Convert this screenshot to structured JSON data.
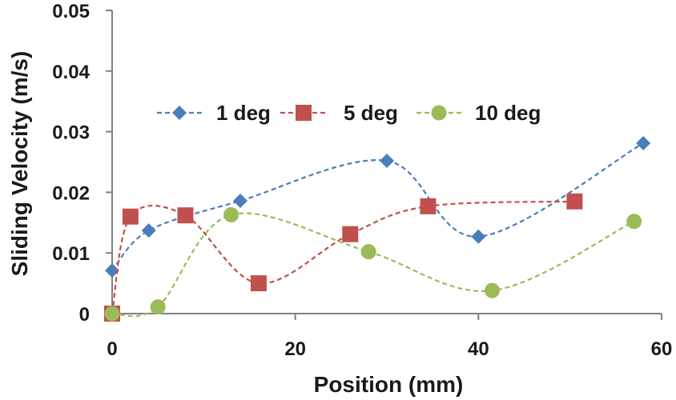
{
  "chart_data": {
    "type": "scatter",
    "title": "",
    "xlabel": "Position (mm)",
    "ylabel": "Sliding Velocity (m/s)",
    "xlim": [
      0,
      60
    ],
    "ylim": [
      0,
      0.05
    ],
    "xticks": [
      0,
      20,
      40,
      60
    ],
    "xtick_labels": [
      "0",
      "20",
      "40",
      "60"
    ],
    "yticks": [
      0,
      0.01,
      0.02,
      0.03,
      0.04,
      0.05
    ],
    "ytick_labels": [
      "0",
      "0.01",
      "0.02",
      "0.03",
      "0.04",
      "0.05"
    ],
    "grid": false,
    "legend_position": "upper-center",
    "series": [
      {
        "name": "1 deg",
        "label": "1 deg",
        "color": "#4A7EBB",
        "marker": "diamond",
        "line": "dashed-smooth",
        "x": [
          0,
          4,
          14,
          30,
          40,
          58
        ],
        "y": [
          0.0071,
          0.0137,
          0.0186,
          0.0252,
          0.0127,
          0.0281
        ]
      },
      {
        "name": "5 deg",
        "label": "5 deg",
        "color": "#C0504D",
        "marker": "square",
        "line": "dashed-smooth",
        "x": [
          0,
          2,
          8,
          16,
          26,
          34.5,
          50.5
        ],
        "y": [
          0.0,
          0.016,
          0.0162,
          0.005,
          0.0131,
          0.0177,
          0.0185
        ]
      },
      {
        "name": "10 deg",
        "label": "10 deg",
        "color": "#9BBB59",
        "marker": "circle",
        "line": "dashed-smooth",
        "x": [
          0,
          5,
          13,
          28,
          41.5,
          57
        ],
        "y": [
          0.0,
          0.0011,
          0.0163,
          0.0102,
          0.0038,
          0.0152
        ]
      }
    ]
  }
}
